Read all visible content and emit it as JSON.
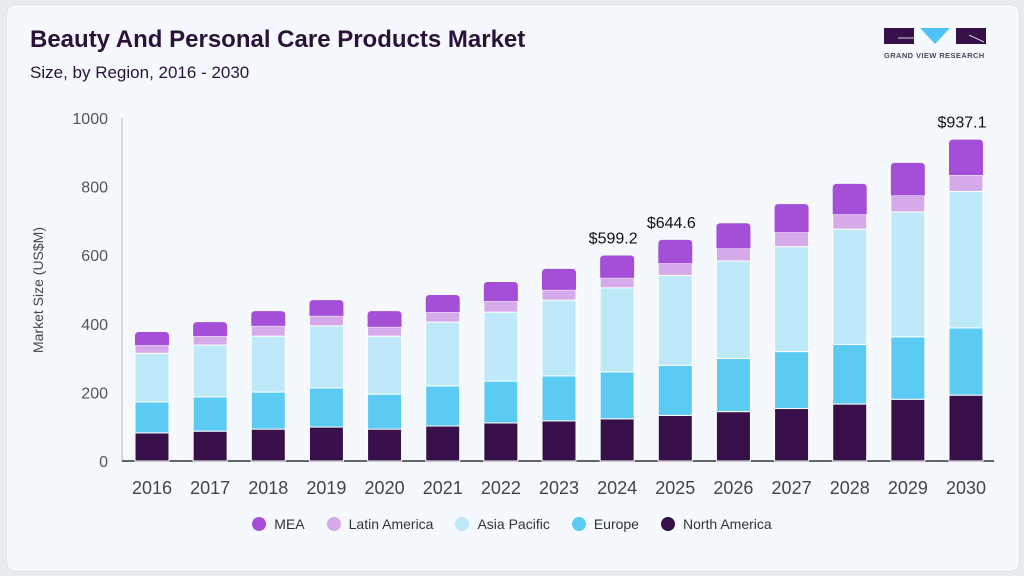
{
  "header": {
    "title": "Beauty And Personal Care Products Market",
    "subtitle": "Size, by Region, 2016 - 2030",
    "logo_text": "GRAND VIEW RESEARCH"
  },
  "chart_data": {
    "type": "bar",
    "stacked": true,
    "title": "Beauty And Personal Care Products Market",
    "subtitle": "Size, by Region, 2016 - 2030",
    "xlabel": "",
    "ylabel": "Market Size (US$M)",
    "ylim": [
      0,
      1000
    ],
    "yticks": [
      0,
      200,
      400,
      600,
      800,
      1000
    ],
    "grid": false,
    "legend_position": "bottom",
    "categories": [
      "2016",
      "2017",
      "2018",
      "2019",
      "2020",
      "2021",
      "2022",
      "2023",
      "2024",
      "2025",
      "2026",
      "2027",
      "2028",
      "2029",
      "2030"
    ],
    "series": [
      {
        "name": "North America",
        "color": "#37104a",
        "values": [
          82,
          87,
          93,
          99,
          93,
          102,
          111,
          117,
          123,
          133,
          144,
          153,
          166,
          180,
          192
        ]
      },
      {
        "name": "Europe",
        "color": "#5bcbf3",
        "values": [
          90,
          100,
          108,
          114,
          102,
          117,
          122,
          131,
          137,
          146,
          155,
          166,
          174,
          182,
          196
        ]
      },
      {
        "name": "Asia Pacific",
        "color": "#bde9f8",
        "values": [
          142,
          151,
          163,
          181,
          169,
          186,
          201,
          221,
          245,
          262,
          284,
          306,
          336,
          364,
          398
        ]
      },
      {
        "name": "Latin America",
        "color": "#d5a9ea",
        "values": [
          24,
          26,
          30,
          29,
          27,
          29,
          32,
          30,
          29,
          35,
          37,
          42,
          43,
          48,
          48
        ]
      },
      {
        "name": "MEA",
        "color": "#a54fd8",
        "values": [
          38,
          41,
          43,
          46,
          46,
          50,
          56,
          61,
          65.2,
          68.6,
          73,
          82,
          89,
          95,
          103.1
        ]
      }
    ],
    "data_labels": [
      {
        "category": "2024",
        "text": "$599.2"
      },
      {
        "category": "2025",
        "text": "$644.6"
      },
      {
        "category": "2030",
        "text": "$937.1"
      }
    ],
    "legend_order": [
      "MEA",
      "Latin America",
      "Asia Pacific",
      "Europe",
      "North America"
    ]
  }
}
